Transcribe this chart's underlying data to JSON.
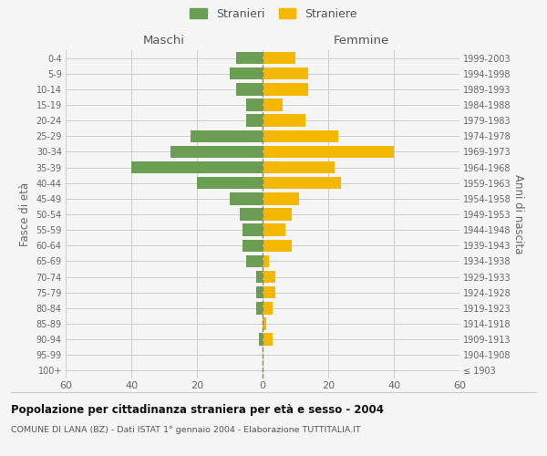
{
  "age_groups": [
    "100+",
    "95-99",
    "90-94",
    "85-89",
    "80-84",
    "75-79",
    "70-74",
    "65-69",
    "60-64",
    "55-59",
    "50-54",
    "45-49",
    "40-44",
    "35-39",
    "30-34",
    "25-29",
    "20-24",
    "15-19",
    "10-14",
    "5-9",
    "0-4"
  ],
  "birth_years": [
    "≤ 1903",
    "1904-1908",
    "1909-1913",
    "1914-1918",
    "1919-1923",
    "1924-1928",
    "1929-1933",
    "1934-1938",
    "1939-1943",
    "1944-1948",
    "1949-1953",
    "1954-1958",
    "1959-1963",
    "1964-1968",
    "1969-1973",
    "1974-1978",
    "1979-1983",
    "1984-1988",
    "1989-1993",
    "1994-1998",
    "1999-2003"
  ],
  "males": [
    0,
    0,
    1,
    0,
    2,
    2,
    2,
    5,
    6,
    6,
    7,
    10,
    20,
    40,
    28,
    22,
    5,
    5,
    8,
    10,
    8
  ],
  "females": [
    0,
    0,
    3,
    1,
    3,
    4,
    4,
    2,
    9,
    7,
    9,
    11,
    24,
    22,
    40,
    23,
    13,
    6,
    14,
    14,
    10
  ],
  "male_color": "#6a9e52",
  "female_color": "#f5b800",
  "background_color": "#f5f5f5",
  "grid_color": "#cccccc",
  "title": "Popolazione per cittadinanza straniera per età e sesso - 2004",
  "subtitle": "COMUNE DI LANA (BZ) - Dati ISTAT 1° gennaio 2004 - Elaborazione TUTTITALIA.IT",
  "xlabel_left": "Maschi",
  "xlabel_right": "Femmine",
  "ylabel_left": "Fasce di età",
  "ylabel_right": "Anni di nascita",
  "legend_male": "Stranieri",
  "legend_female": "Straniere",
  "xlim": 60,
  "dashed_line_color": "#888866"
}
